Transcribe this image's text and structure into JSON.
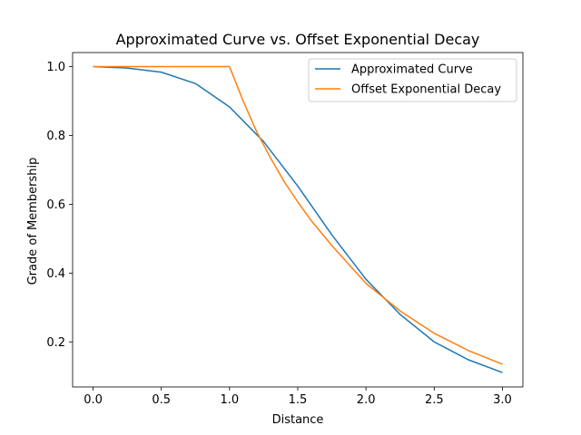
{
  "chart_data": {
    "type": "line",
    "title": "Approximated Curve vs. Offset Exponential Decay",
    "xlabel": "Distance",
    "ylabel": "Grade of Membership",
    "xlim": [
      -0.15,
      3.15
    ],
    "ylim": [
      0.069,
      1.041
    ],
    "xticks": [
      0.0,
      0.5,
      1.0,
      1.5,
      2.0,
      2.5,
      3.0
    ],
    "xtick_labels": [
      "0.0",
      "0.5",
      "1.0",
      "1.5",
      "2.0",
      "2.5",
      "3.0"
    ],
    "yticks": [
      0.2,
      0.4,
      0.6,
      0.8,
      1.0
    ],
    "ytick_labels": [
      "0.2",
      "0.4",
      "0.6",
      "0.8",
      "1.0"
    ],
    "grid": false,
    "legend": "top-right",
    "series": [
      {
        "name": "Approximated Curve",
        "color": "#1f77b4",
        "x": [
          0.0,
          0.25,
          0.5,
          0.75,
          1.0,
          1.25,
          1.5,
          1.75,
          2.0,
          2.25,
          2.5,
          2.75,
          3.0
        ],
        "y": [
          1.0,
          0.996,
          0.984,
          0.951,
          0.883,
          0.782,
          0.653,
          0.511,
          0.382,
          0.28,
          0.2,
          0.148,
          0.111
        ]
      },
      {
        "name": "Offset Exponential Decay",
        "color": "#ff7f0e",
        "x": [
          0.0,
          0.5,
          1.0,
          1.1,
          1.2,
          1.3,
          1.4,
          1.5,
          1.6,
          1.75,
          2.0,
          2.25,
          2.5,
          2.75,
          3.0
        ],
        "y": [
          1.0,
          1.0,
          1.0,
          0.9,
          0.81,
          0.735,
          0.666,
          0.607,
          0.552,
          0.48,
          0.37,
          0.29,
          0.225,
          0.175,
          0.135
        ]
      }
    ]
  }
}
